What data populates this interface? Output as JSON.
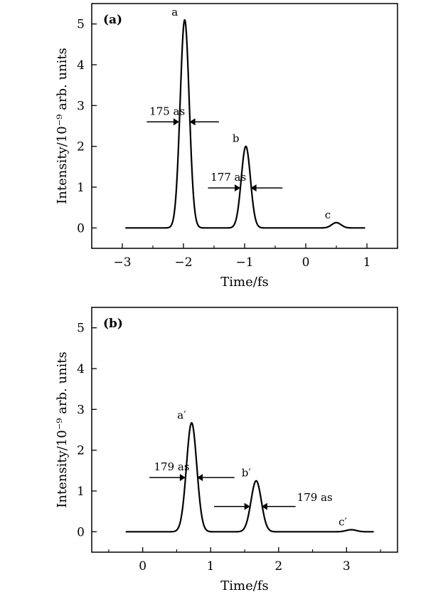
{
  "chart_data": [
    {
      "type": "line",
      "panel_label": "(a)",
      "xlabel": "Time/fs",
      "ylabel": "Intensity/10⁻⁹ arb. units",
      "xlim": [
        -3.5,
        1.5
      ],
      "ylim": [
        -0.5,
        5.5
      ],
      "xticks": [
        -3,
        -2,
        -1,
        0,
        1
      ],
      "xtick_labels": [
        "−3",
        "−2",
        "−1",
        "0",
        "1"
      ],
      "yticks": [
        0,
        1,
        2,
        3,
        4,
        5
      ],
      "ytick_labels": [
        "0",
        "1",
        "2",
        "3",
        "4",
        "5"
      ],
      "x_range": [
        -2.95,
        0.97
      ],
      "peaks": [
        {
          "label": "a",
          "center": -1.98,
          "amplitude": 5.1,
          "fwhm": 0.175
        },
        {
          "label": "b",
          "center": -0.98,
          "amplitude": 2.0,
          "fwhm": 0.177
        },
        {
          "label": "c",
          "center": 0.5,
          "amplitude": 0.13,
          "fwhm": 0.18
        }
      ],
      "fwhm_annotations": [
        {
          "text": "175 as",
          "y": 2.6,
          "left_arrow_from": -2.6,
          "left_arrow_to": -2.07,
          "right_arrow_from": -1.42,
          "right_arrow_to": -1.9
        },
        {
          "text": "177 as",
          "y": 0.98,
          "left_arrow_from": -1.6,
          "left_arrow_to": -1.07,
          "right_arrow_from": -0.38,
          "right_arrow_to": -0.9
        }
      ],
      "grid": false
    },
    {
      "type": "line",
      "panel_label": "(b)",
      "xlabel": "Time/fs",
      "ylabel": "Intensity/10⁻⁹ arb. units",
      "xlim": [
        -0.75,
        3.75
      ],
      "ylim": [
        -0.5,
        5.5
      ],
      "xticks": [
        0,
        1,
        2,
        3
      ],
      "xtick_labels": [
        "0",
        "1",
        "2",
        "3"
      ],
      "yticks": [
        0,
        1,
        2,
        3,
        4,
        5
      ],
      "ytick_labels": [
        "0",
        "1",
        "2",
        "3",
        "4",
        "5"
      ],
      "x_range": [
        -0.25,
        3.4
      ],
      "peaks": [
        {
          "label": "a′",
          "center": 0.72,
          "amplitude": 2.67,
          "fwhm": 0.179
        },
        {
          "label": "b′",
          "center": 1.67,
          "amplitude": 1.25,
          "fwhm": 0.179
        },
        {
          "label": "c′",
          "center": 3.07,
          "amplitude": 0.05,
          "fwhm": 0.18
        }
      ],
      "fwhm_annotations": [
        {
          "text": "179 as",
          "y": 1.33,
          "left_arrow_from": 0.1,
          "left_arrow_to": 0.63,
          "right_arrow_from": 1.35,
          "right_arrow_to": 0.8
        },
        {
          "text": "179 as",
          "y": 0.62,
          "left_arrow_from": 1.05,
          "left_arrow_to": 1.58,
          "right_arrow_from": 2.25,
          "right_arrow_to": 1.75
        }
      ],
      "grid": false
    }
  ]
}
